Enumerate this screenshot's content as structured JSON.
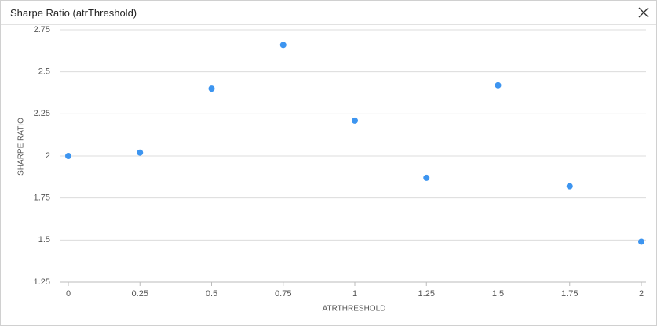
{
  "chart_data": {
    "type": "scatter",
    "title": "Sharpe Ratio (atrThreshold)",
    "x_label": "ATRTHRESHOLD",
    "y_label": "SHARPE RATIO",
    "x": [
      0,
      0.25,
      0.5,
      0.75,
      1,
      1.25,
      1.5,
      1.75,
      2
    ],
    "values": [
      2.0,
      2.02,
      2.4,
      2.66,
      2.21,
      1.87,
      2.42,
      1.82,
      1.49
    ],
    "color": "#3d95f0",
    "xlim": [
      0,
      2
    ],
    "xticks": [
      0,
      0.25,
      0.5,
      0.75,
      1,
      1.25,
      1.5,
      1.75,
      2
    ],
    "ylim": [
      1.25,
      2.75
    ],
    "yticks": [
      1.25,
      1.5,
      1.75,
      2,
      2.25,
      2.5,
      2.75
    ],
    "grid": true
  }
}
